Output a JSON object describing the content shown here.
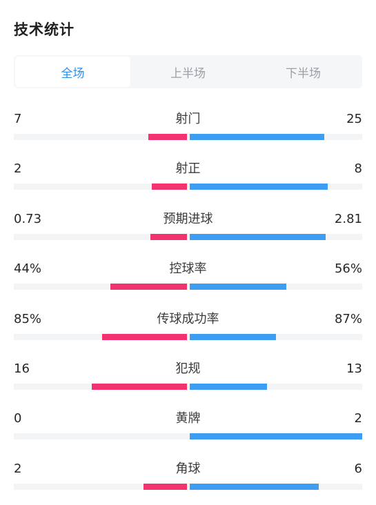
{
  "title": "技术统计",
  "tabs": [
    {
      "label": "全场",
      "active": true
    },
    {
      "label": "上半场",
      "active": false
    },
    {
      "label": "下半场",
      "active": false
    }
  ],
  "colors": {
    "home": "#f2336f",
    "away": "#3d9df2",
    "active_tab": "#2f8fe8"
  },
  "stats": [
    {
      "label": "射门",
      "home": "7",
      "away": "25",
      "home_share": 0.22,
      "away_share": 0.78
    },
    {
      "label": "射正",
      "home": "2",
      "away": "8",
      "home_share": 0.2,
      "away_share": 0.8
    },
    {
      "label": "预期进球",
      "home": "0.73",
      "away": "2.81",
      "home_share": 0.21,
      "away_share": 0.79
    },
    {
      "label": "控球率",
      "home": "44%",
      "away": "56%",
      "home_share": 0.44,
      "away_share": 0.56
    },
    {
      "label": "传球成功率",
      "home": "85%",
      "away": "87%",
      "home_share": 0.49,
      "away_share": 0.5
    },
    {
      "label": "犯规",
      "home": "16",
      "away": "13",
      "home_share": 0.55,
      "away_share": 0.45
    },
    {
      "label": "黄牌",
      "home": "0",
      "away": "2",
      "home_share": 0.0,
      "away_share": 1.0
    },
    {
      "label": "角球",
      "home": "2",
      "away": "6",
      "home_share": 0.25,
      "away_share": 0.75
    }
  ]
}
